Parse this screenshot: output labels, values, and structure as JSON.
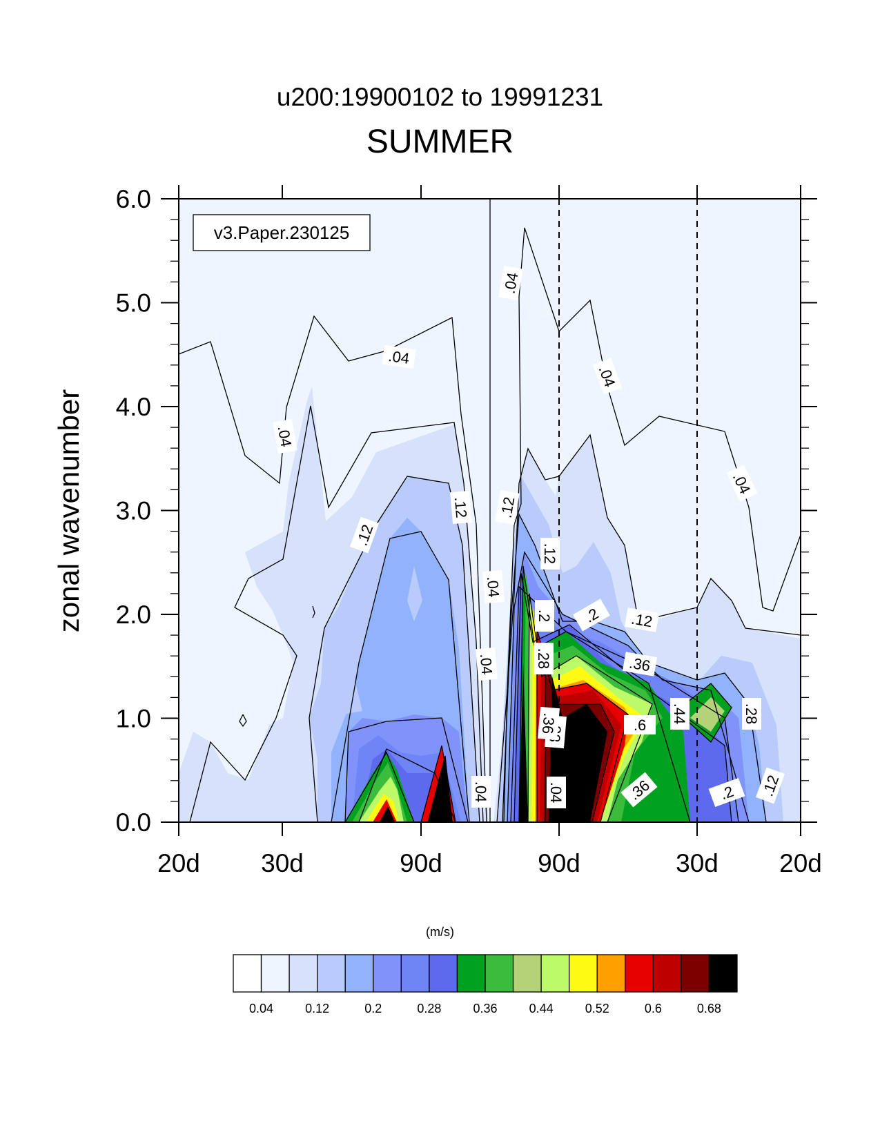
{
  "chart_data": {
    "type": "contour",
    "title": "u200:19900102 to 19991231",
    "subtitle": "SUMMER",
    "ylabel": "zonal wavenumber",
    "units": "(m/s)",
    "annotation": "v3.Paper.230125",
    "ylim": [
      0,
      6
    ],
    "y_ticks": [
      "0.0",
      "1.0",
      "2.0",
      "3.0",
      "4.0",
      "5.0",
      "6.0"
    ],
    "x_ticks": [
      "20d",
      "30d",
      "90d",
      "90d",
      "30d",
      "20d"
    ],
    "contour_levels": [
      0.04,
      0.08,
      0.12,
      0.16,
      0.2,
      0.24,
      0.28,
      0.32,
      0.36,
      0.4,
      0.44,
      0.48,
      0.52,
      0.56,
      0.6,
      0.64,
      0.68
    ],
    "colorbar_labels": [
      "0.04",
      "0.12",
      "0.2",
      "0.28",
      "0.36",
      "0.44",
      "0.52",
      "0.6",
      "0.68"
    ],
    "colorbar_colors": [
      "#ffffff",
      "#eef5ff",
      "#d6e2fb",
      "#b9cbfa",
      "#91b3fd",
      "#7f93fb",
      "#6f84f5",
      "#5d6aee",
      "#00a020",
      "#3cbc3c",
      "#b4d278",
      "#bdfa69",
      "#fffa14",
      "#ffa000",
      "#e60000",
      "#be0000",
      "#7d0000",
      "#000000"
    ],
    "contour_labels": [
      ".04",
      ".04",
      ".04",
      ".04",
      ".04",
      ".04",
      ".04",
      ".04",
      ".04",
      ".12",
      ".12",
      ".12",
      ".12",
      ".12",
      ".12",
      ".2",
      ".2",
      ".2",
      ".28",
      ".28",
      ".28",
      ".36",
      ".36",
      ".36",
      ".44",
      ".6"
    ]
  }
}
